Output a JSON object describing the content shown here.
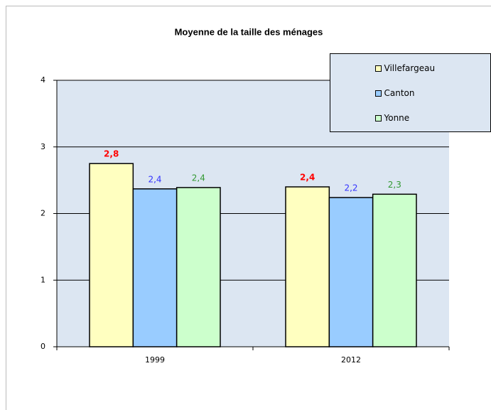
{
  "chart_data": {
    "type": "bar",
    "title": "Moyenne de la taille des ménages",
    "categories": [
      "1999",
      "2012"
    ],
    "series": [
      {
        "name": "Villefargeau",
        "color": "#ffffc0",
        "label_color": "#ff0000",
        "values": [
          2.75,
          2.4
        ],
        "value_labels": [
          "2,8",
          "2,4"
        ]
      },
      {
        "name": "Canton",
        "color": "#99ccff",
        "label_color": "#3333ff",
        "values": [
          2.37,
          2.24
        ],
        "value_labels": [
          "2,4",
          "2,2"
        ]
      },
      {
        "name": "Yonne",
        "color": "#ccffcc",
        "label_color": "#339933",
        "values": [
          2.39,
          2.29
        ],
        "value_labels": [
          "2,4",
          "2,3"
        ]
      }
    ],
    "ylim": [
      0,
      4
    ],
    "yticks": [
      0,
      1,
      2,
      3,
      4
    ],
    "grid": true,
    "legend": "top-right"
  }
}
